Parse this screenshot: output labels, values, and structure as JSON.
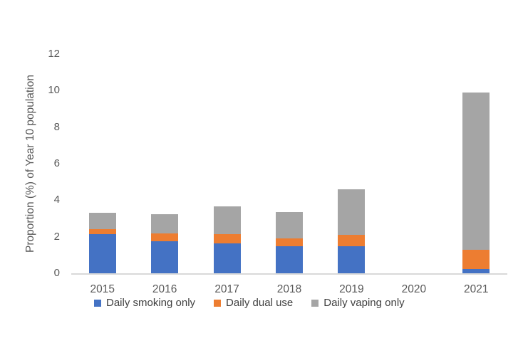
{
  "chart_data": {
    "type": "bar",
    "stacked": true,
    "title": "",
    "xlabel": "",
    "ylabel": "Proportion (%) of Year 10 population",
    "categories": [
      "2015",
      "2016",
      "2017",
      "2018",
      "2019",
      "2020",
      "2021"
    ],
    "series": [
      {
        "name": "Daily smoking only",
        "color": "#4472C4",
        "values": [
          2.15,
          1.75,
          1.65,
          1.5,
          1.5,
          0,
          0.25
        ]
      },
      {
        "name": "Daily dual use",
        "color": "#ED7D31",
        "values": [
          0.25,
          0.45,
          0.5,
          0.4,
          0.6,
          0,
          1.05
        ]
      },
      {
        "name": "Daily vaping only",
        "color": "#A5A5A5",
        "values": [
          0.9,
          1.05,
          1.5,
          1.45,
          2.5,
          0,
          8.6
        ]
      }
    ],
    "ylim": [
      0,
      12
    ],
    "yticks": [
      0,
      2,
      4,
      6,
      8,
      10,
      12
    ],
    "grid": false,
    "legend_position": "bottom",
    "axis_line_color": "#D9D9D9",
    "label_color": "#595959"
  }
}
